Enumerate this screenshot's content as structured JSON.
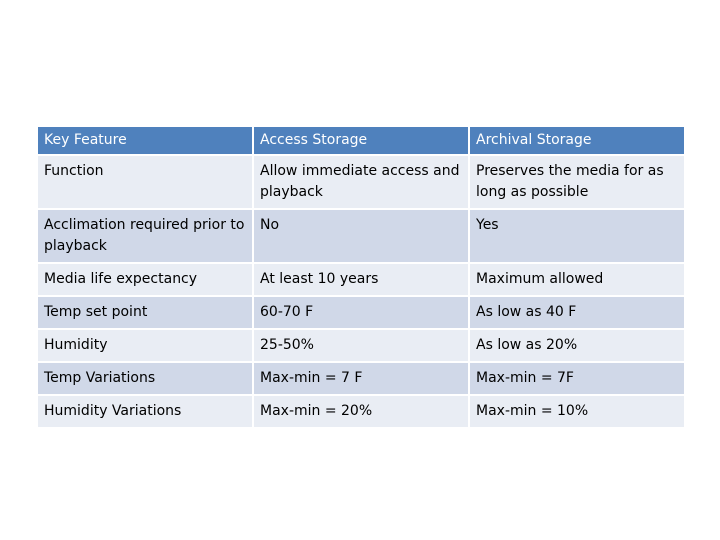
{
  "table": {
    "header": [
      "Key Feature",
      "Access Storage",
      "Archival Storage"
    ],
    "rows": [
      [
        "Function",
        "Allow immediate access and playback",
        "Preserves the media for as long as possible"
      ],
      [
        "Acclimation required prior to playback",
        "No",
        "Yes"
      ],
      [
        "Media life expectancy",
        "At least 10 years",
        "Maximum allowed"
      ],
      [
        "Temp set point",
        "60-70 F",
        "As low as 40 F"
      ],
      [
        "Humidity",
        "25-50%",
        "As low as 20%"
      ],
      [
        "Temp Variations",
        "Max-min = 7 F",
        "Max-min = 7F"
      ],
      [
        "Humidity Variations",
        "Max-min = 20%",
        "Max-min = 10%"
      ]
    ]
  }
}
